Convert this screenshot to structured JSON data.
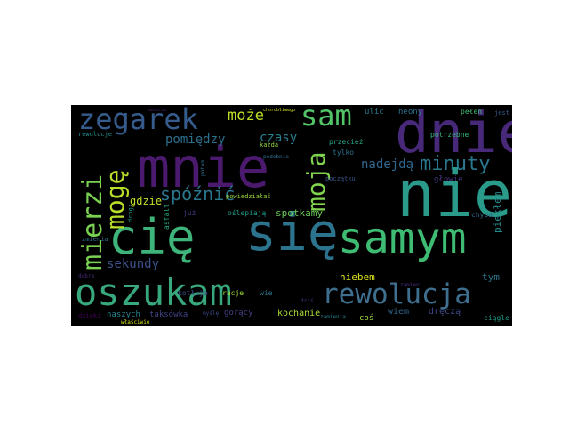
{
  "background_color": "#000000",
  "words": [
    {
      "text": "nie",
      "color": "#2a9b8a"
    },
    {
      "text": "mnie",
      "color": "#4b1a6e"
    },
    {
      "text": "dnie",
      "color": "#482878"
    },
    {
      "text": "się",
      "color": "#2c738e"
    },
    {
      "text": "cię",
      "color": "#3eb37a"
    },
    {
      "text": "samym",
      "color": "#3fbc73"
    },
    {
      "text": "oszukam",
      "color": "#38a87d"
    },
    {
      "text": "rewolucja",
      "color": "#3e6f8f"
    },
    {
      "text": "zegarek",
      "color": "#365c8d"
    },
    {
      "text": "sam",
      "color": "#52c569"
    },
    {
      "text": "mierzi",
      "color": "#7ad151"
    },
    {
      "text": "mogę",
      "color": "#b8de29"
    },
    {
      "text": "moja",
      "color": "#7fd34e"
    },
    {
      "text": "minuty",
      "color": "#2a788e"
    },
    {
      "text": "spóźnić",
      "color": "#2a778e"
    },
    {
      "text": "może",
      "color": "#bddf26"
    },
    {
      "text": "nadejdą",
      "color": "#31678e"
    },
    {
      "text": "czasy",
      "color": "#287d8e"
    },
    {
      "text": "pomiędzy",
      "color": "#2d708e"
    },
    {
      "text": "sekundy",
      "color": "#3b528b"
    },
    {
      "text": "gdzie",
      "color": "#c2df23"
    },
    {
      "text": "spotkamy",
      "color": "#6ccd5a"
    },
    {
      "text": "piekłem",
      "color": "#23898e"
    },
    {
      "text": "niebem",
      "color": "#d8e219"
    },
    {
      "text": "tym",
      "color": "#2a788e"
    },
    {
      "text": "wiem",
      "color": "#31688e"
    },
    {
      "text": "dręczą",
      "color": "#3e4989"
    },
    {
      "text": "kochanie",
      "color": "#a8db34"
    },
    {
      "text": "gorący",
      "color": "#433e85"
    },
    {
      "text": "taksówka",
      "color": "#414487"
    },
    {
      "text": "naszych",
      "color": "#26828e"
    },
    {
      "text": "coś",
      "color": "#a0da39"
    },
    {
      "text": "ciągle",
      "color": "#1f9e89"
    },
    {
      "text": "ulic",
      "color": "#2a788e"
    },
    {
      "text": "neony",
      "color": "#2c728e"
    },
    {
      "text": "pełen",
      "color": "#3dbc74"
    },
    {
      "text": "jest",
      "color": "#365d8d"
    },
    {
      "text": "przecież",
      "color": "#22a785"
    },
    {
      "text": "tylko",
      "color": "#2d718e"
    },
    {
      "text": "potrzebne",
      "color": "#35b779"
    },
    {
      "text": "początku",
      "color": "#3a548c"
    },
    {
      "text": "głowie",
      "color": "#46337f"
    },
    {
      "text": "chyba",
      "color": "#31668e"
    },
    {
      "text": "każda",
      "color": "#8fd744"
    },
    {
      "text": "powiedziałaś",
      "color": "#9fda3a"
    },
    {
      "text": "oślepiają",
      "color": "#1e9c89"
    },
    {
      "text": "już",
      "color": "#443983"
    },
    {
      "text": "asfalt",
      "color": "#25ac82"
    },
    {
      "text": "racje",
      "color": "#a2da37"
    },
    {
      "text": "kotłuje",
      "color": "#3b518b"
    },
    {
      "text": "wie",
      "color": "#2a788e"
    },
    {
      "text": "zmienia",
      "color": "#2c728e"
    },
    {
      "text": "drogi",
      "color": "#1f988b"
    },
    {
      "text": "rewolucje",
      "color": "#218f8d"
    },
    {
      "text": "właściwie",
      "color": "#d8e219"
    },
    {
      "text": "dobra",
      "color": "#472a7a"
    },
    {
      "text": "dzięki",
      "color": "#440154"
    },
    {
      "text": "podobnie",
      "color": "#2f6c8e"
    },
    {
      "text": "dziś",
      "color": "#46307e"
    },
    {
      "text": "zamienia",
      "color": "#26828e"
    },
    {
      "text": "zamieni",
      "color": "#472d7b"
    },
    {
      "text": "potem",
      "color": "#2d708e"
    },
    {
      "text": "myślę",
      "color": "#3e4989"
    },
    {
      "text": "chorobliwego",
      "color": "#d2e21b"
    },
    {
      "text": "świecie",
      "color": "#481c6e"
    }
  ]
}
